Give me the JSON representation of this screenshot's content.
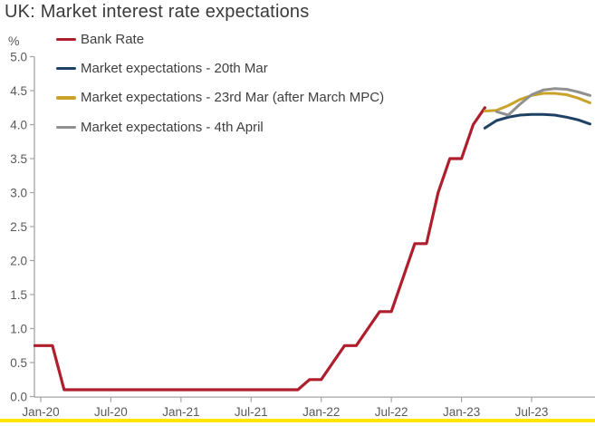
{
  "page": {
    "accent_bottom_bar_color": "#ffe600"
  },
  "chart_data": {
    "type": "line",
    "title": "UK: Market interest rate expectations",
    "ylabel": "%",
    "xlabel": "",
    "grid": false,
    "legend_position": "top-left",
    "ylim": [
      0.0,
      5.0
    ],
    "ytick_labels": [
      "0.0",
      "0.5",
      "1.0",
      "1.5",
      "2.0",
      "2.5",
      "3.0",
      "3.5",
      "4.0",
      "4.5",
      "5.0"
    ],
    "x_unit": "months since Jan-2020",
    "xlim": [
      -0.5,
      47.5
    ],
    "xtick_positions": [
      0,
      6,
      12,
      18,
      24,
      30,
      36,
      42
    ],
    "xtick_labels": [
      "Jan-20",
      "Jul-20",
      "Jan-21",
      "Jul-21",
      "Jan-22",
      "Jul-22",
      "Jan-23",
      "Jul-23"
    ],
    "series": [
      {
        "name": "Bank Rate",
        "color": "#ae1e2c",
        "stroke_width": 3.2,
        "x": [
          -0.5,
          1,
          2,
          22,
          23,
          24,
          25,
          26,
          27,
          28,
          29,
          30,
          31,
          32,
          33,
          34,
          35,
          36,
          37,
          38
        ],
        "values": [
          0.75,
          0.75,
          0.1,
          0.1,
          0.25,
          0.25,
          0.5,
          0.75,
          0.75,
          1.0,
          1.25,
          1.25,
          1.75,
          2.25,
          2.25,
          3.0,
          3.5,
          3.5,
          4.0,
          4.25
        ]
      },
      {
        "name": "Market expectations - 20th Mar",
        "color": "#1e4164",
        "stroke_width": 3.0,
        "x": [
          38,
          39,
          40,
          41,
          42,
          43,
          44,
          45,
          46,
          47
        ],
        "values": [
          3.95,
          4.06,
          4.11,
          4.14,
          4.15,
          4.15,
          4.14,
          4.11,
          4.07,
          4.01
        ]
      },
      {
        "name": "Market expectations - 23rd Mar (after March MPC)",
        "color": "#c9a22a",
        "stroke_width": 3.0,
        "x": [
          38,
          39,
          40,
          41,
          42,
          43,
          44,
          45,
          46,
          47
        ],
        "values": [
          4.2,
          4.21,
          4.28,
          4.37,
          4.43,
          4.46,
          4.46,
          4.44,
          4.39,
          4.32
        ]
      },
      {
        "name": "Market expectations - 4th April",
        "color": "#909090",
        "stroke_width": 3.0,
        "x": [
          39,
          40,
          41,
          42,
          43,
          44,
          45,
          46,
          47
        ],
        "values": [
          4.19,
          4.14,
          4.3,
          4.44,
          4.51,
          4.53,
          4.52,
          4.48,
          4.43
        ]
      }
    ],
    "axis_color": "#a3a3a3",
    "tick_label_color": "#595959"
  }
}
